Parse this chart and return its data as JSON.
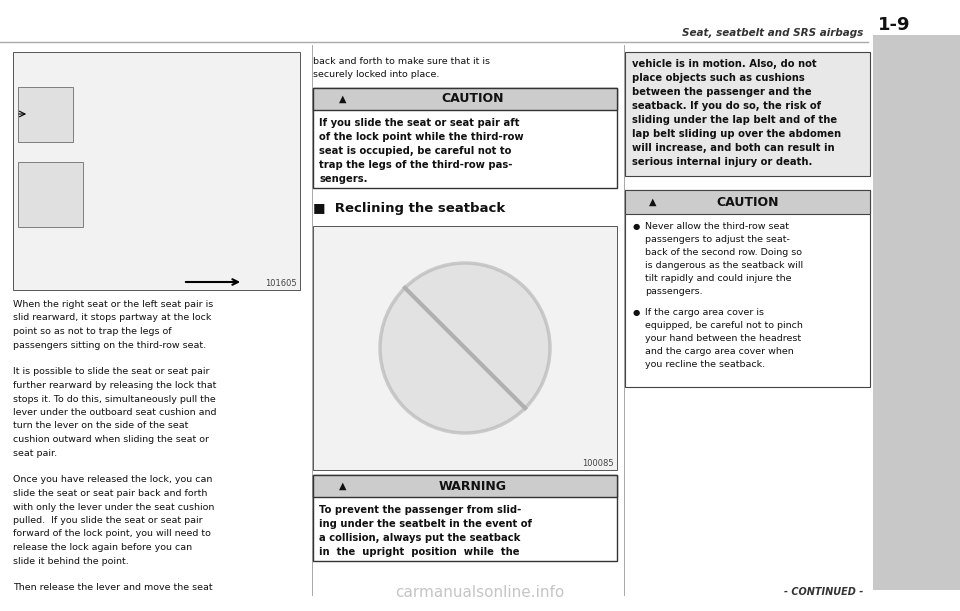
{
  "bg_color": "#ffffff",
  "header_text": "Seat, seatbelt and SRS airbags",
  "header_page": "1-9",
  "footer_continued": "- CONTINUED -",
  "watermark": "carmanualsonline.info",
  "image1_label": "101605",
  "image2_label": "100085",
  "body_text_left": [
    "When the right seat or the left seat pair is",
    "slid rearward, it stops partway at the lock",
    "point so as not to trap the legs of",
    "passengers sitting on the third-row seat.",
    "",
    "It is possible to slide the seat or seat pair",
    "further rearward by releasing the lock that",
    "stops it. To do this, simultaneously pull the",
    "lever under the outboard seat cushion and",
    "turn the lever on the side of the seat",
    "cushion outward when sliding the seat or",
    "seat pair.",
    "",
    "Once you have released the lock, you can",
    "slide the seat or seat pair back and forth",
    "with only the lever under the seat cushion",
    "pulled.  If you slide the seat or seat pair",
    "forward of the lock point, you will need to",
    "release the lock again before you can",
    "slide it behind the point.",
    "",
    "Then release the lever and move the seat"
  ],
  "mid_top_text_lines": [
    "back and forth to make sure that it is",
    "securely locked into place."
  ],
  "caution1_title": "CAUTION",
  "caution1_body_lines": [
    "If you slide the seat or seat pair aft",
    "of the lock point while the third-row",
    "seat is occupied, be careful not to",
    "trap the legs of the third-row pas-",
    "sengers."
  ],
  "reclining_title": "■  Reclining the seatback",
  "warning_title": "WARNING",
  "warning_body_lines": [
    "To prevent the passenger from slid-",
    "ing under the seatbelt in the event of",
    "a collision, always put the seatback",
    "in  the  upright  position  while  the"
  ],
  "right_top_text_lines": [
    "vehicle is in motion. Also, do not",
    "place objects such as cushions",
    "between the passenger and the",
    "seatback. If you do so, the risk of",
    "sliding under the lap belt and of the",
    "lap belt sliding up over the abdomen",
    "will increase, and both can result in",
    "serious internal injury or death."
  ],
  "caution2_title": "CAUTION",
  "caution2_bullet1_lines": [
    "Never allow the third-row seat",
    "passengers to adjust the seat-",
    "back of the second row. Doing so",
    "is dangerous as the seatback will",
    "tilt rapidly and could injure the",
    "passengers."
  ],
  "caution2_bullet2_lines": [
    "If the cargo area cover is",
    "equipped, be careful not to pinch",
    "your hand between the headrest",
    "and the cargo area cover when",
    "you recline the seatback."
  ]
}
